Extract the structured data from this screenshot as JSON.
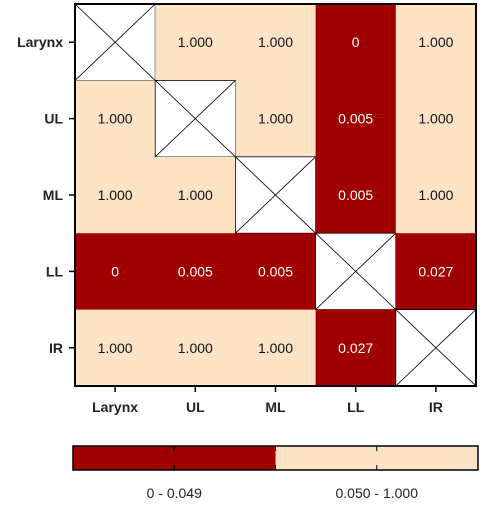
{
  "chart_data": {
    "type": "heatmap",
    "rows": [
      "Larynx",
      "UL",
      "ML",
      "LL",
      "IR"
    ],
    "columns": [
      "Larynx",
      "UL",
      "ML",
      "LL",
      "IR"
    ],
    "cells": [
      [
        null,
        "1.000",
        "1.000",
        "0",
        "1.000"
      ],
      [
        "1.000",
        null,
        "1.000",
        "0.005",
        "1.000"
      ],
      [
        "1.000",
        "1.000",
        null,
        "0.005",
        "1.000"
      ],
      [
        "0",
        "0.005",
        "0.005",
        null,
        "0.027"
      ],
      [
        "1.000",
        "1.000",
        "1.000",
        "0.027",
        null
      ]
    ],
    "diagonal": "crossed-out (X)",
    "threshold": 0.05,
    "legend": [
      {
        "label": "0 - 0.049",
        "color": "#a00000"
      },
      {
        "label": "0.050 - 1.000",
        "color": "#fde3c6"
      }
    ],
    "colors": {
      "significant": "#a00000",
      "not_significant": "#fde3c6",
      "diagonal": "#ffffff",
      "border": "#000000"
    }
  }
}
